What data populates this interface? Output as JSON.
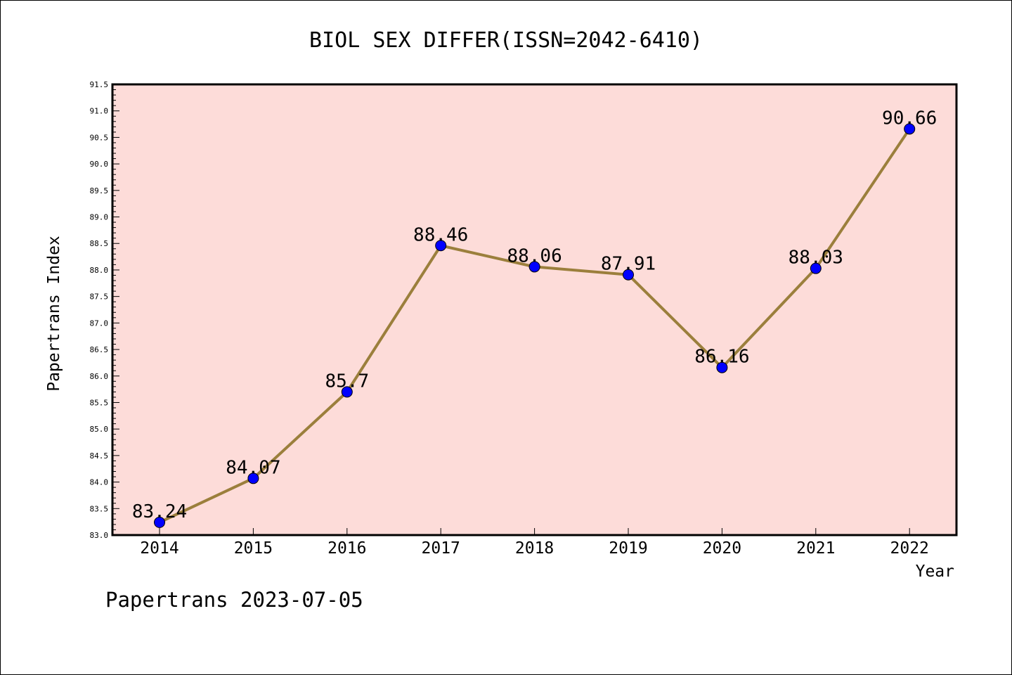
{
  "chart_data": {
    "type": "line",
    "title": "BIOL SEX DIFFER(ISSN=2042-6410)",
    "xlabel": "Year",
    "ylabel": "Papertrans Index",
    "categories": [
      "2014",
      "2015",
      "2016",
      "2017",
      "2018",
      "2019",
      "2020",
      "2021",
      "2022"
    ],
    "values": [
      83.24,
      84.07,
      85.7,
      88.46,
      88.06,
      87.91,
      86.16,
      88.03,
      90.66
    ],
    "data_labels": [
      "83.24",
      "84.07",
      "85.7",
      "88.46",
      "88.06",
      "87.91",
      "86.16",
      "88.03",
      "90.66"
    ],
    "ylim": [
      83.0,
      91.5
    ],
    "yticks": [
      "83.0",
      "83.5",
      "84.0",
      "84.5",
      "85.0",
      "85.5",
      "86.0",
      "86.5",
      "87.0",
      "87.5",
      "88.0",
      "88.5",
      "89.0",
      "89.5",
      "90.0",
      "90.5",
      "91.0",
      "91.5"
    ],
    "grid": false,
    "colors": {
      "plot_background": "#fddcd9",
      "line": "#9b7f3c",
      "marker": "#0000ff"
    }
  },
  "footer": {
    "watermark": "Papertrans 2023-07-05"
  }
}
